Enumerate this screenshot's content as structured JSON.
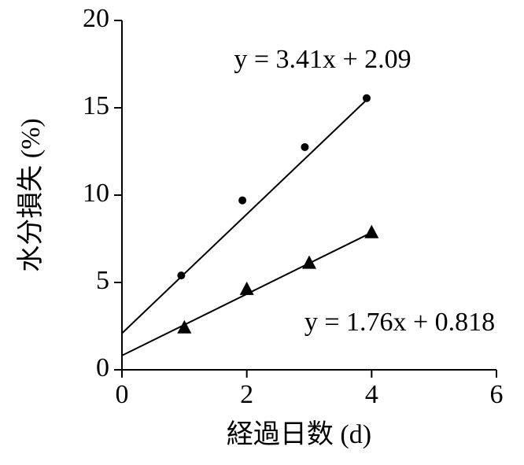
{
  "chart_data": {
    "type": "scatter",
    "x_label": "経過日数 (d)",
    "y_label": "水分損失 (%)",
    "xlim": [
      0,
      6
    ],
    "xticks": [
      0,
      2,
      4,
      6
    ],
    "ylim": [
      0,
      20
    ],
    "yticks": [
      0,
      5,
      10,
      15,
      20
    ],
    "series": [
      {
        "marker": "circle",
        "color": "#000000",
        "x": [
          0.95,
          1.93,
          2.93,
          3.92
        ],
        "values": [
          5.4,
          9.7,
          12.75,
          15.55
        ],
        "trendline": {
          "slope": 3.41,
          "intercept": 2.09,
          "label": "y = 3.41x + 2.09"
        }
      },
      {
        "marker": "triangle",
        "color": "#000000",
        "x": [
          1.0,
          2.0,
          3.0,
          4.0
        ],
        "values": [
          2.4,
          4.6,
          6.1,
          7.85
        ],
        "trendline": {
          "slope": 1.76,
          "intercept": 0.818,
          "label": "y = 1.76x + 0.818"
        }
      }
    ]
  }
}
